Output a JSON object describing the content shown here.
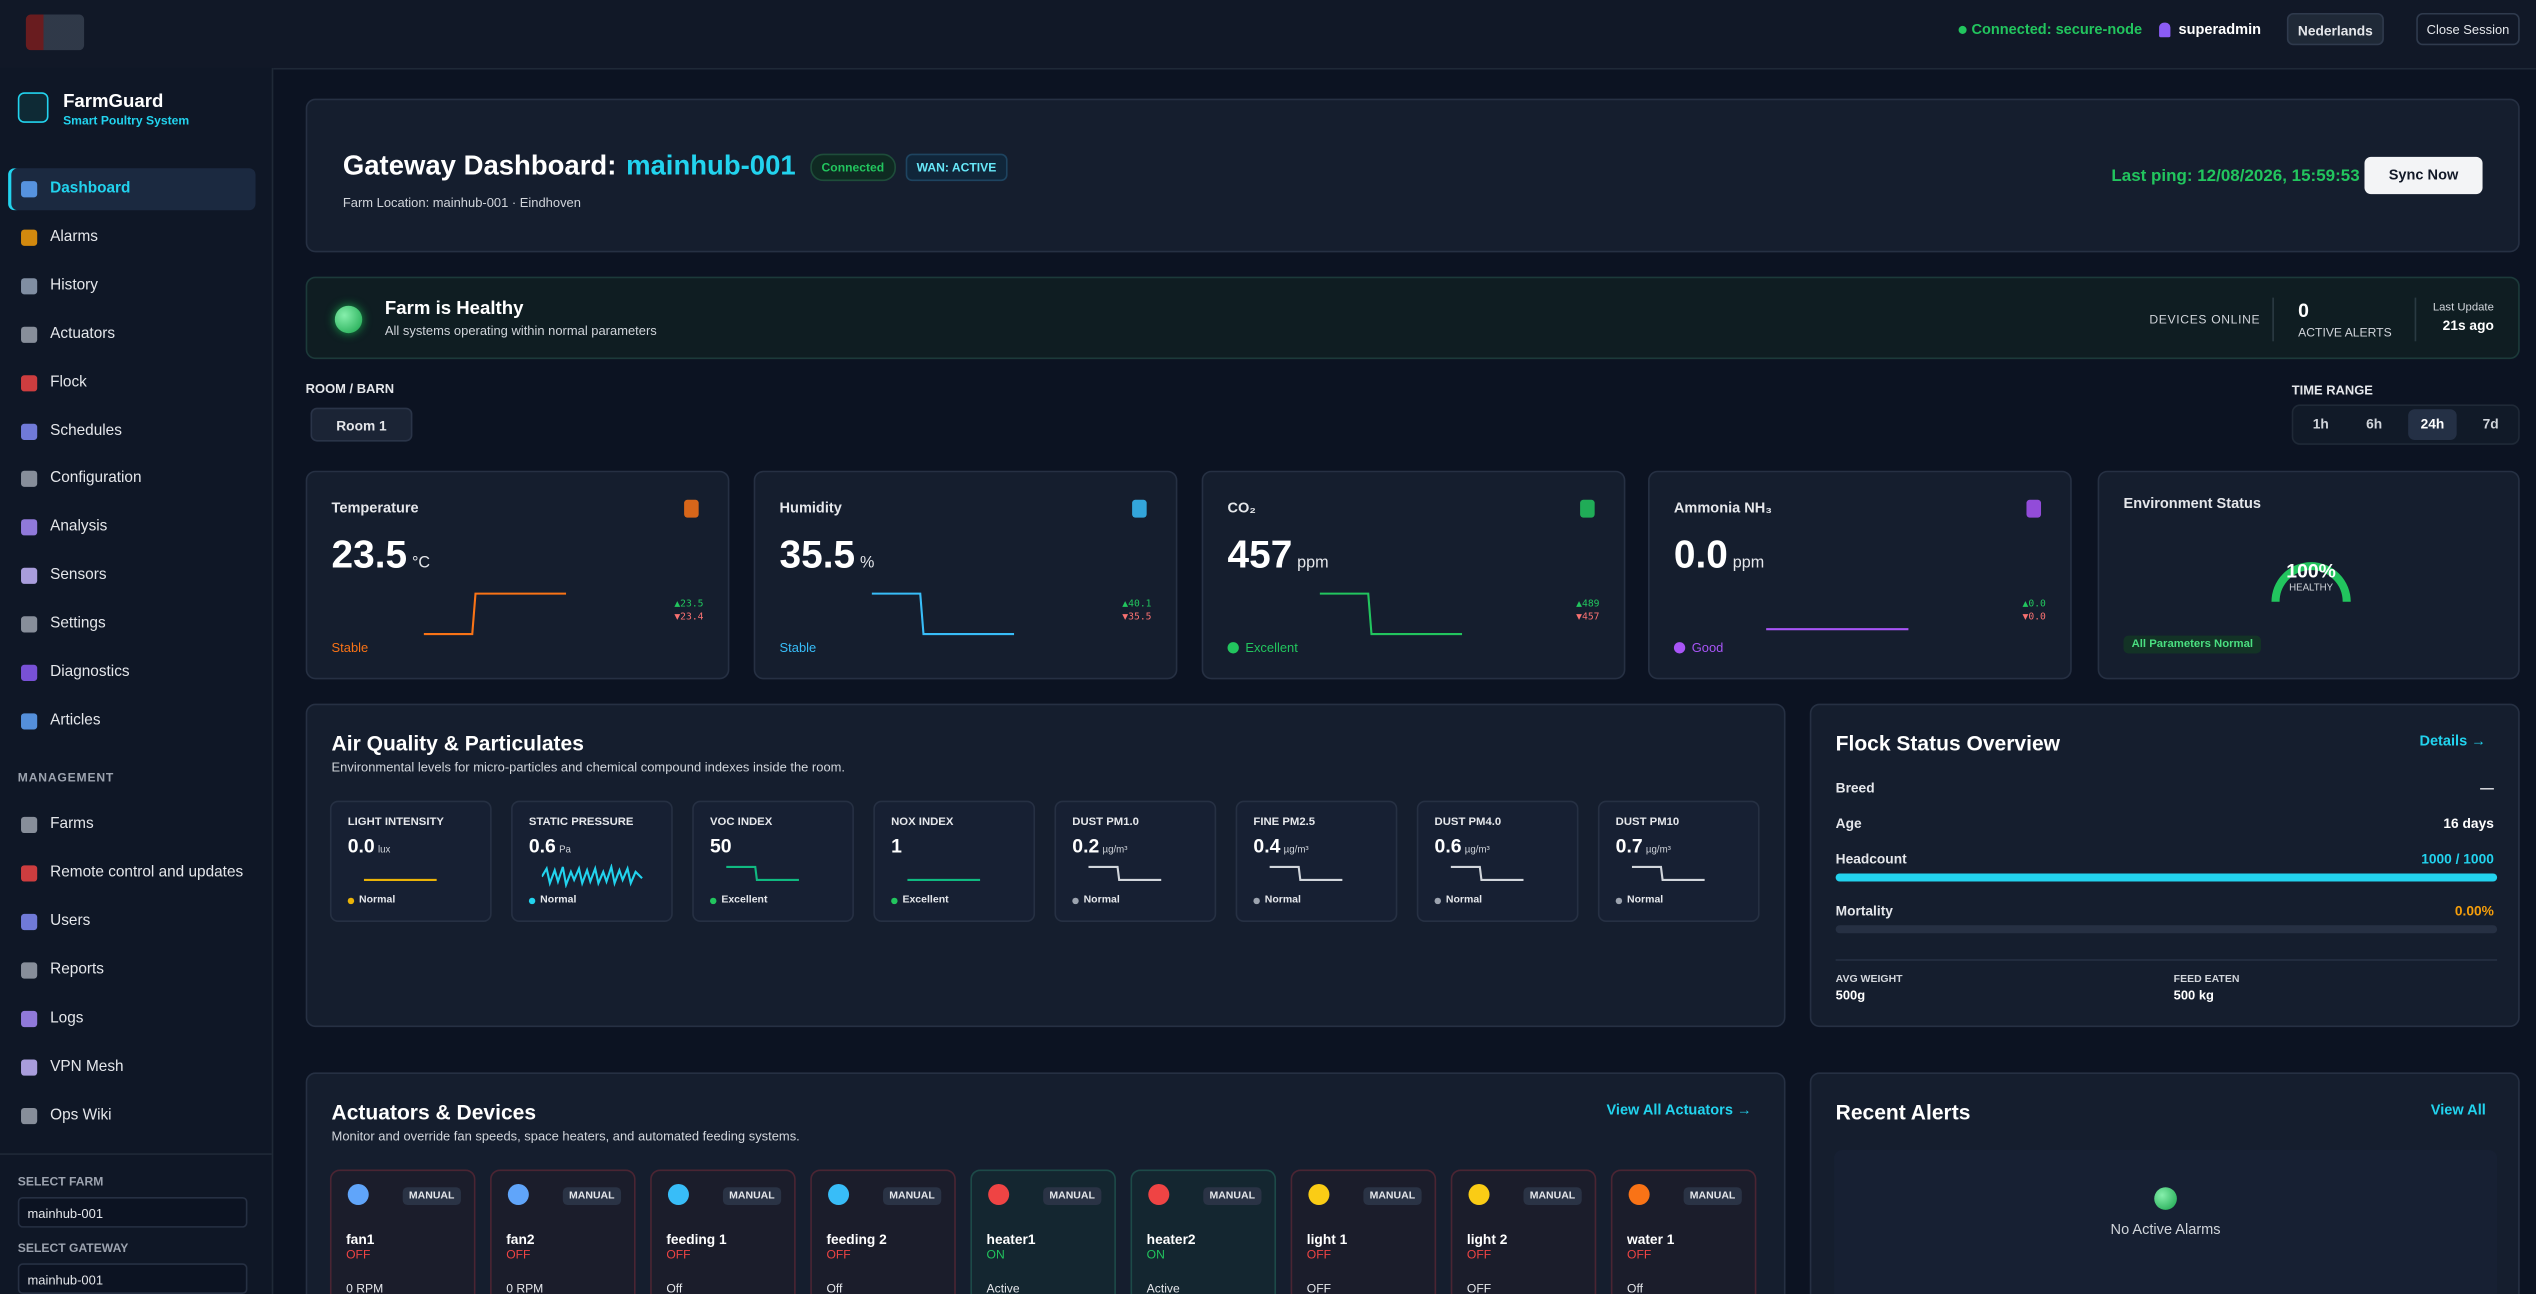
{
  "topbar": {
    "connection": "Connected: secure-node",
    "user": "superadmin",
    "language": "Nederlands",
    "close": "Close Session"
  },
  "sidebar": {
    "brand": "FarmGuard",
    "tagline": "Smart Poultry System",
    "nav": [
      "Dashboard",
      "Alarms",
      "History",
      "Actuators",
      "Flock",
      "Schedules",
      "Configuration",
      "Analysis",
      "Sensors",
      "Settings",
      "Diagnostics",
      "Articles"
    ],
    "management_label": "MANAGEMENT",
    "management": [
      "Farms",
      "Remote control and updates",
      "Users",
      "Reports",
      "Logs",
      "VPN Mesh",
      "Ops Wiki"
    ],
    "farm_label": "SELECT FARM",
    "farm": "mainhub-001",
    "gateway_label": "SELECT GATEWAY",
    "gateway": "mainhub-001"
  },
  "header": {
    "title": "Gateway Dashboard:",
    "gateway": "mainhub-001",
    "status": "Connected",
    "wan": "WAN: ACTIVE",
    "location": "Farm Location: mainhub-001 · Eindhoven",
    "last_ping": "Last ping: 12/08/2026, 15:59:53",
    "sync": "Sync Now"
  },
  "health": {
    "title": "Farm is Healthy",
    "subtitle": "All systems operating within normal parameters",
    "devices_online": "DEVICES ONLINE",
    "alerts_value": "0",
    "alerts_label": "ACTIVE ALERTS",
    "update_label": "Last Update",
    "update_value": "21s ago"
  },
  "filters": {
    "room_label": "ROOM / BARN",
    "room": "Room 1",
    "time_label": "TIME RANGE",
    "ranges": [
      "1h",
      "6h",
      "24h",
      "7d"
    ]
  },
  "metrics": [
    {
      "label": "Temperature",
      "value": "23.5",
      "unit": "°C",
      "status": "Stable",
      "high": "▲23.5",
      "low": "▼23.4"
    },
    {
      "label": "Humidity",
      "value": "35.5",
      "unit": "%",
      "status": "Stable",
      "high": "▲40.1",
      "low": "▼35.5"
    },
    {
      "label": "CO₂",
      "value": "457",
      "unit": "ppm",
      "status": "Excellent",
      "high": "▲489",
      "low": "▼457"
    },
    {
      "label": "Ammonia NH₃",
      "value": "0.0",
      "unit": "ppm",
      "status": "Good",
      "high": "▲0.0",
      "low": "▼0.0"
    }
  ],
  "environment": {
    "label": "Environment Status",
    "value": "100%",
    "state": "HEALTHY",
    "badge": "All Parameters Normal"
  },
  "air_quality": {
    "title": "Air Quality & Particulates",
    "subtitle": "Environmental levels for micro-particles and chemical compound indexes inside the room.",
    "tiles": [
      {
        "label": "LIGHT INTENSITY",
        "value": "0.0",
        "unit": "lux",
        "status": "Normal"
      },
      {
        "label": "STATIC PRESSURE",
        "value": "0.6",
        "unit": "Pa",
        "status": "Normal"
      },
      {
        "label": "VOC INDEX",
        "value": "50",
        "status": "Excellent"
      },
      {
        "label": "NOX INDEX",
        "value": "1",
        "status": "Excellent"
      },
      {
        "label": "DUST PM1.0",
        "value": "0.2",
        "unit": "µg/m³",
        "status": "Normal"
      },
      {
        "label": "FINE PM2.5",
        "value": "0.4",
        "unit": "µg/m³",
        "status": "Normal"
      },
      {
        "label": "DUST PM4.0",
        "value": "0.6",
        "unit": "µg/m³",
        "status": "Normal"
      },
      {
        "label": "DUST PM10",
        "value": "0.7",
        "unit": "µg/m³",
        "status": "Normal"
      }
    ]
  },
  "flock": {
    "title": "Flock Status Overview",
    "link": "Details →",
    "rows": [
      {
        "label": "Breed",
        "value": "—"
      },
      {
        "label": "Age",
        "value": "16 days"
      },
      {
        "label": "Headcount",
        "value": "1000 / 1000"
      },
      {
        "label": "Mortality",
        "value": "0.00%"
      }
    ],
    "stats": [
      {
        "label": "AVG WEIGHT",
        "value": "500g"
      },
      {
        "label": "FEED EATEN",
        "value": "500 kg"
      }
    ]
  },
  "actuators": {
    "title": "Actuators & Devices",
    "subtitle": "Monitor and override fan speeds, space heaters, and automated feeding systems.",
    "link": "View All Actuators →",
    "devices": [
      {
        "name": "fan1",
        "mode": "MANUAL",
        "state": "OFF",
        "detail": "0 RPM"
      },
      {
        "name": "fan2",
        "mode": "MANUAL",
        "state": "OFF",
        "detail": "0 RPM"
      },
      {
        "name": "feeding 1",
        "mode": "MANUAL",
        "state": "OFF",
        "detail": "Off"
      },
      {
        "name": "feeding 2",
        "mode": "MANUAL",
        "state": "OFF",
        "detail": "Off"
      },
      {
        "name": "heater1",
        "mode": "MANUAL",
        "state": "ON",
        "detail": "Active"
      },
      {
        "name": "heater2",
        "mode": "MANUAL",
        "state": "ON",
        "detail": "Active"
      },
      {
        "name": "light 1",
        "mode": "MANUAL",
        "state": "OFF",
        "detail": "OFF"
      },
      {
        "name": "light 2",
        "mode": "MANUAL",
        "state": "OFF",
        "detail": "OFF"
      },
      {
        "name": "water 1",
        "mode": "MANUAL",
        "state": "OFF",
        "detail": "Off"
      }
    ]
  },
  "alerts": {
    "title": "Recent Alerts",
    "link": "View All",
    "empty": "No Active Alarms"
  }
}
